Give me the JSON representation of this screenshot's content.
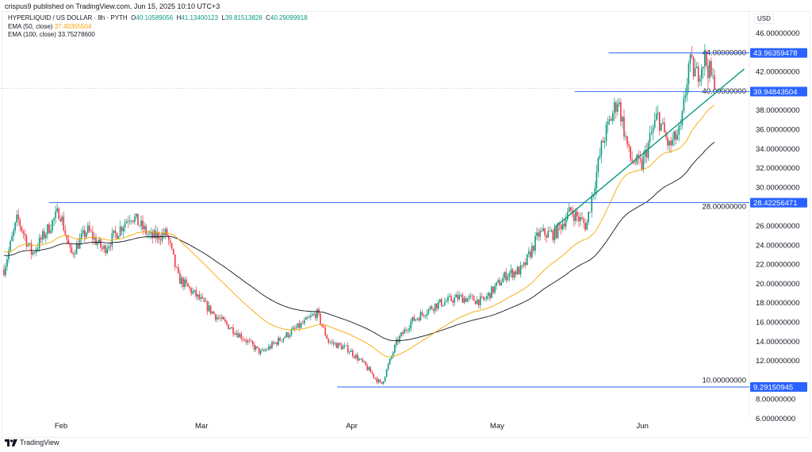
{
  "header": {
    "published": "crispus9 published on TradingView.com, Jun 15, 2025 10:10 UTC+3"
  },
  "legend": {
    "symbol": "HYPERLIQUID / US DOLLAR · 8h · PYTH",
    "open_label": "O",
    "open": "40.10589056",
    "high_label": "H",
    "high": "41.13400123",
    "low_label": "L",
    "low": "39.81513828",
    "close_label": "C",
    "close": "40.29099918",
    "ema50_label": "EMA (50, close)",
    "ema50": "37.40355504",
    "ema100_label": "EMA (100, close)",
    "ema100": "33.75278600"
  },
  "currency": "USD",
  "footer": {
    "brand": "TradingView"
  },
  "colors": {
    "up": "#089981",
    "down": "#f23645",
    "ema50": "#f7a600",
    "ema100": "#131722",
    "level": "#2962ff",
    "trend": "#089981"
  },
  "chart_data": {
    "type": "candlestick",
    "title": "HYPERLIQUID / US DOLLAR · 8h · PYTH",
    "ylim": [
      5,
      47
    ],
    "y_ticks": [
      "46.00000000",
      "44.00000000",
      "42.00000000",
      "40.00000000",
      "38.00000000",
      "36.00000000",
      "34.00000000",
      "32.00000000",
      "30.00000000",
      "28.00000000",
      "26.00000000",
      "24.00000000",
      "22.00000000",
      "20.00000000",
      "18.00000000",
      "16.00000000",
      "14.00000000",
      "12.00000000",
      "10.00000000",
      "8.00000000",
      "6.00000000"
    ],
    "y_tick_values": [
      46,
      44,
      42,
      40,
      38,
      36,
      34,
      32,
      30,
      28,
      26,
      24,
      22,
      20,
      18,
      16,
      14,
      12,
      10,
      8,
      6
    ],
    "x_ticks": [
      {
        "label": "Feb",
        "day": 0
      },
      {
        "label": "Mar",
        "day": 29
      },
      {
        "label": "Apr",
        "day": 60
      },
      {
        "label": "May",
        "day": 90
      },
      {
        "label": "Jun",
        "day": 120
      }
    ],
    "x_domain_days_from_feb1": [
      -12,
      138
    ],
    "approx_close_path": {
      "day": [
        -11.8,
        -9,
        -6,
        -0.3,
        2,
        5.4,
        8.7,
        14.4,
        18.5,
        21.8,
        24.2,
        27.4,
        32.3,
        36.4,
        41.3,
        44.6,
        49.5,
        52.8,
        55.2,
        59.3,
        62.6,
        66.1,
        69.3,
        72.3,
        77.2,
        82.1,
        87.1,
        92,
        95.3,
        98.6,
        101.9,
        105.2,
        108.4,
        111.7,
        114.9,
        117.4,
        119.8,
        123.1,
        125.5,
        127.9,
        129.6,
        131.2,
        132.8,
        135.0
      ],
      "close": [
        21.5,
        26.8,
        23.1,
        27.6,
        23.0,
        25.6,
        23.5,
        27.2,
        24.8,
        25.2,
        20.6,
        19.0,
        16.5,
        14.9,
        12.8,
        14.0,
        15.7,
        17.0,
        14.0,
        13.2,
        11.6,
        9.5,
        14.0,
        16.1,
        17.8,
        18.6,
        18.2,
        21.0,
        21.5,
        25.2,
        25.2,
        27.6,
        26.0,
        34.6,
        39.2,
        33.0,
        32.2,
        37.5,
        34.2,
        35.9,
        42.9,
        41.7,
        43.5,
        40.29
      ]
    },
    "levels": [
      {
        "label": "43.96359478",
        "value": 43.96359478
      },
      {
        "label": "39.94843504",
        "value": 39.94843504
      },
      {
        "label": "28.42256471",
        "value": 28.42256471
      },
      {
        "label": "9.29150945",
        "value": 9.29150945
      }
    ],
    "trendline": {
      "from": {
        "day": 102,
        "price": 25.9
      },
      "to": {
        "day": 141,
        "price": 42.3
      }
    },
    "series": [
      {
        "name": "EMA (50, close)",
        "last": 37.40355504
      },
      {
        "name": "EMA (100, close)",
        "last": 33.752786
      }
    ]
  }
}
